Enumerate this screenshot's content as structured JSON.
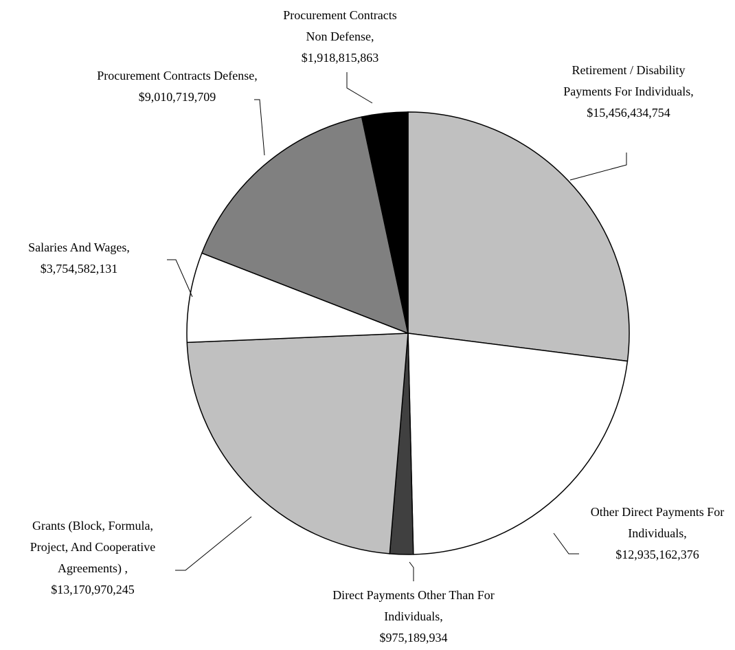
{
  "chart_data": {
    "type": "pie",
    "categories": [
      "Retirement / Disability Payments For Individuals,",
      "Other Direct Payments For Individuals,",
      "Direct Payments Other Than For Individuals,",
      "Grants (Block, Formula, Project, And Cooperative Agreements) ,",
      "Salaries And Wages,",
      "Procurement Contracts Defense,",
      "Procurement Contracts Non Defense,"
    ],
    "values": [
      15456434754,
      12935162376,
      975189934,
      13170970245,
      3754582131,
      9010719709,
      1918815863
    ],
    "value_labels": [
      "$15,456,434,754",
      "$12,935,162,376",
      "$975,189,934",
      "$13,170,970,245",
      "$3,754,582,131",
      "$9,010,719,709",
      "$1,918,815,863"
    ],
    "colors": [
      "#c0c0c0",
      "#ffffff",
      "#404040",
      "#c0c0c0",
      "#ffffff",
      "#808080",
      "#000000"
    ]
  }
}
